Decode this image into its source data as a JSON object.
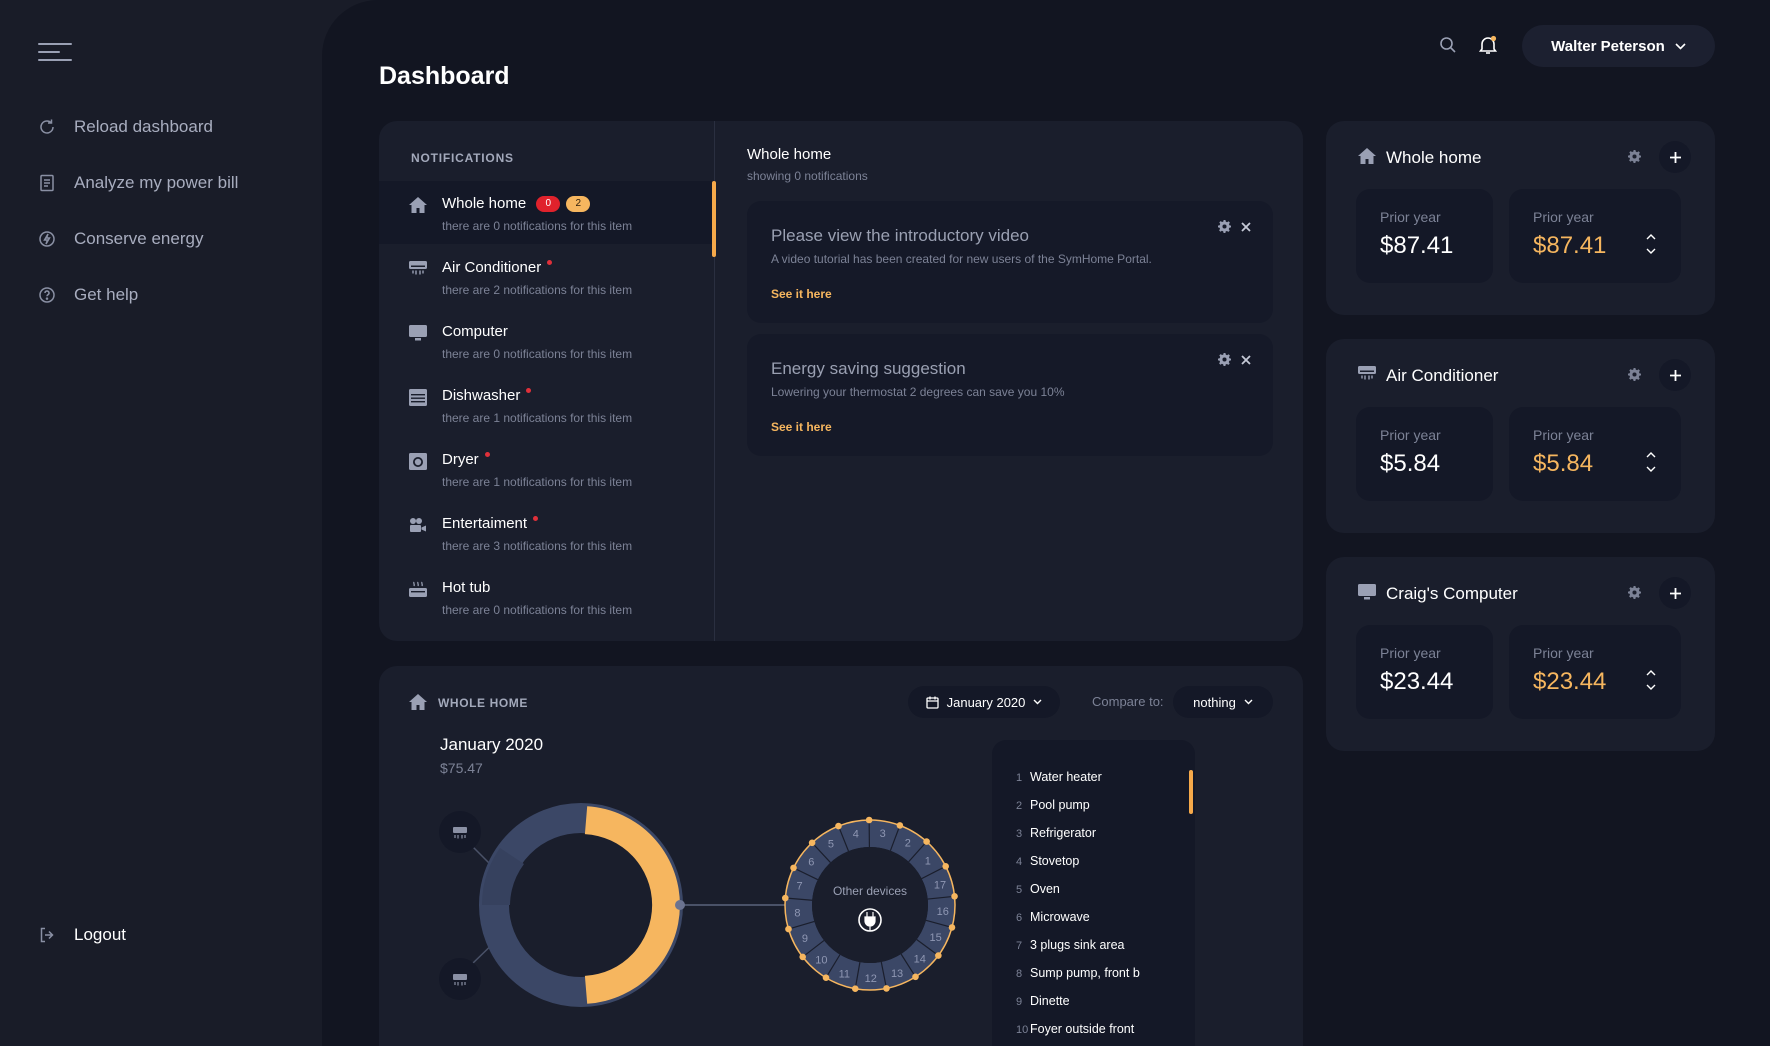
{
  "sidebar": {
    "items": [
      {
        "label": "Reload dashboard",
        "icon": "reload-icon"
      },
      {
        "label": "Analyze my power bill",
        "icon": "bill-icon"
      },
      {
        "label": "Conserve energy",
        "icon": "energy-icon"
      },
      {
        "label": "Get help",
        "icon": "help-icon"
      }
    ],
    "logout": "Logout"
  },
  "header": {
    "title": "Dashboard",
    "user": "Walter Peterson"
  },
  "notifications": {
    "heading": "NOTIFICATIONS",
    "items": [
      {
        "name": "Whole home",
        "sub": "there are 0 notifications for this item",
        "badge_red": "0",
        "badge_orange": "2",
        "icon": "home-icon"
      },
      {
        "name": "Air Conditioner",
        "sub": "there are 2 notifications for this item",
        "icon": "air-conditioner-icon"
      },
      {
        "name": "Computer",
        "sub": "there are 0 notifications for this item",
        "icon": "computer-icon"
      },
      {
        "name": "Dishwasher",
        "sub": "there are 1 notifications for this item",
        "icon": "dishwasher-icon"
      },
      {
        "name": "Dryer",
        "sub": "there are 1 notifications for this item",
        "icon": "dryer-icon"
      },
      {
        "name": "Entertaiment",
        "sub": "there are 3 notifications for this item",
        "icon": "entertainment-icon"
      },
      {
        "name": "Hot tub",
        "sub": "there are 0 notifications for this item",
        "icon": "hot-tub-icon"
      }
    ],
    "detail": {
      "title": "Whole home",
      "subtitle": "showing 0 notifications",
      "messages": [
        {
          "title": "Please view the introductory video",
          "text": "A video tutorial has been created for new users of the SymHome Portal.",
          "link": "See it here"
        },
        {
          "title": "Energy saving suggestion",
          "text": "Lowering your thermostat 2 degrees can save you 10%",
          "link": "See it here"
        }
      ]
    }
  },
  "home_chart": {
    "label": "WHOLE HOME",
    "date": "January 2020",
    "compare_label": "Compare to:",
    "compare_value": "nothing",
    "month_title": "January 2020",
    "month_total": "$75.47",
    "other_devices": "Other devices",
    "ring_numbers": [
      "3",
      "2",
      "1",
      "17",
      "16",
      "15",
      "14",
      "13",
      "12",
      "11",
      "10",
      "9",
      "8",
      "7",
      "6",
      "5",
      "4"
    ],
    "devices": [
      {
        "num": "1",
        "name": "Water heater"
      },
      {
        "num": "2",
        "name": "Pool pump"
      },
      {
        "num": "3",
        "name": "Refrigerator"
      },
      {
        "num": "4",
        "name": "Stovetop"
      },
      {
        "num": "5",
        "name": "Oven"
      },
      {
        "num": "6",
        "name": "Microwave"
      },
      {
        "num": "7",
        "name": "3 plugs sink area"
      },
      {
        "num": "8",
        "name": "Sump pump, front b"
      },
      {
        "num": "9",
        "name": "Dinette"
      },
      {
        "num": "10",
        "name": "Foyer outside front"
      }
    ],
    "colors": {
      "accent": "#f6b65f",
      "segment": "#3b4766"
    }
  },
  "cards": [
    {
      "title": "Whole home",
      "icon": "home-icon",
      "left_label": "Prior year",
      "left_value": "$87.41",
      "right_label": "Prior year",
      "right_value": "$87.41"
    },
    {
      "title": "Air Conditioner",
      "icon": "air-conditioner-icon",
      "left_label": "Prior year",
      "left_value": "$5.84",
      "right_label": "Prior year",
      "right_value": "$5.84"
    },
    {
      "title": "Craig's Computer",
      "icon": "computer-icon",
      "left_label": "Prior year",
      "left_value": "$23.44",
      "right_label": "Prior year",
      "right_value": "$23.44"
    }
  ]
}
